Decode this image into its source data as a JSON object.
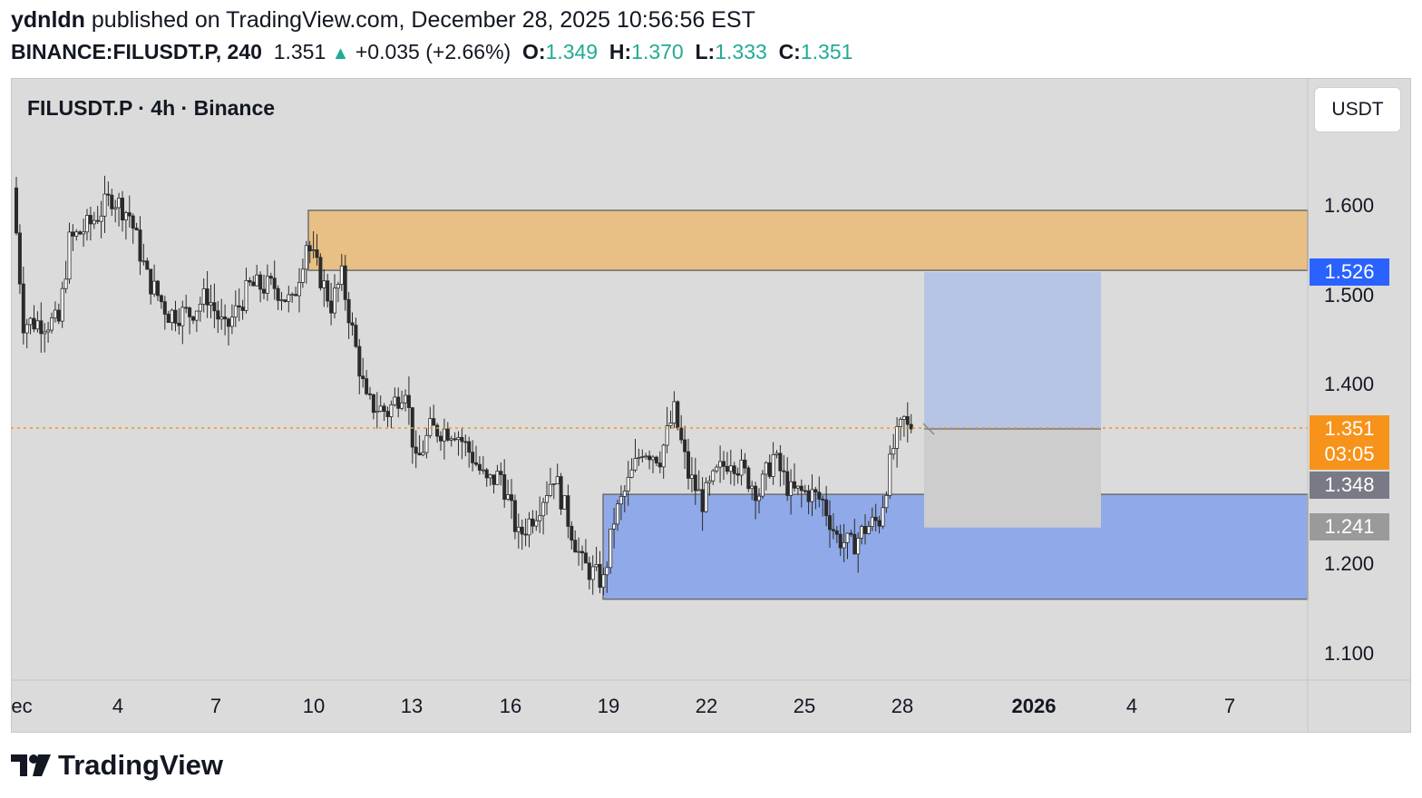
{
  "header": {
    "author": "ydnldn",
    "published_text": "published on TradingView.com, December 28, 2025 10:56:56 EST",
    "symbol_interval": "BINANCE:FILUSDT.P, 240",
    "last": "1.351",
    "change": "+0.035 (+2.66%)",
    "o_label": "O:",
    "o": "1.349",
    "h_label": "H:",
    "h": "1.370",
    "l_label": "L:",
    "l": "1.333",
    "c_label": "C:",
    "c": "1.351"
  },
  "chart_title": "FILUSDT.P · 4h · Binance",
  "currency_button": "USDT",
  "price_labels": {
    "zone_top": "1.526",
    "last_price": "1.351",
    "countdown": "03:05",
    "gray_1": "1.348",
    "gray_2": "1.241"
  },
  "colors": {
    "up": "#22ab94",
    "supply_zone": "#e8bf84",
    "demand_zone": "#90a9e8",
    "projection": "#b6c4e6",
    "blue_tag": "#2962ff",
    "orange_tag": "#f7931a",
    "gray_tag": "#787b86"
  },
  "branding": "TradingView",
  "chart_data": {
    "type": "candlestick",
    "title": "FILUSDT.P · 4h · Binance",
    "y_ticks": [
      "1.600",
      "1.500",
      "1.400",
      "1.200",
      "1.100"
    ],
    "ylim": [
      1.05,
      1.72
    ],
    "x_ticks": [
      "ec",
      "4",
      "7",
      "10",
      "13",
      "16",
      "19",
      "22",
      "25",
      "28",
      "2026",
      "4",
      "7"
    ],
    "grid": false,
    "anchors": [
      {
        "t": 0,
        "y": 1.62
      },
      {
        "t": 3,
        "y": 1.47
      },
      {
        "t": 8,
        "y": 1.47
      },
      {
        "t": 13,
        "y": 1.47
      },
      {
        "t": 16,
        "y": 1.56
      },
      {
        "t": 22,
        "y": 1.58
      },
      {
        "t": 28,
        "y": 1.61
      },
      {
        "t": 33,
        "y": 1.59
      },
      {
        "t": 38,
        "y": 1.52
      },
      {
        "t": 44,
        "y": 1.48
      },
      {
        "t": 50,
        "y": 1.48
      },
      {
        "t": 55,
        "y": 1.5
      },
      {
        "t": 60,
        "y": 1.46
      },
      {
        "t": 67,
        "y": 1.51
      },
      {
        "t": 74,
        "y": 1.51
      },
      {
        "t": 79,
        "y": 1.49
      },
      {
        "t": 83,
        "y": 1.56
      },
      {
        "t": 87,
        "y": 1.52
      },
      {
        "t": 90,
        "y": 1.49
      },
      {
        "t": 93,
        "y": 1.52
      },
      {
        "t": 97,
        "y": 1.44
      },
      {
        "t": 100,
        "y": 1.38
      },
      {
        "t": 106,
        "y": 1.37
      },
      {
        "t": 111,
        "y": 1.4
      },
      {
        "t": 114,
        "y": 1.31
      },
      {
        "t": 118,
        "y": 1.35
      },
      {
        "t": 125,
        "y": 1.35
      },
      {
        "t": 130,
        "y": 1.32
      },
      {
        "t": 134,
        "y": 1.29
      },
      {
        "t": 138,
        "y": 1.3
      },
      {
        "t": 143,
        "y": 1.23
      },
      {
        "t": 148,
        "y": 1.26
      },
      {
        "t": 153,
        "y": 1.3
      },
      {
        "t": 157,
        "y": 1.25
      },
      {
        "t": 161,
        "y": 1.2
      },
      {
        "t": 164,
        "y": 1.19
      },
      {
        "t": 167,
        "y": 1.18
      },
      {
        "t": 170,
        "y": 1.25
      },
      {
        "t": 174,
        "y": 1.29
      },
      {
        "t": 178,
        "y": 1.33
      },
      {
        "t": 183,
        "y": 1.32
      },
      {
        "t": 187,
        "y": 1.37
      },
      {
        "t": 191,
        "y": 1.3
      },
      {
        "t": 195,
        "y": 1.27
      },
      {
        "t": 199,
        "y": 1.3
      },
      {
        "t": 203,
        "y": 1.32
      },
      {
        "t": 207,
        "y": 1.3
      },
      {
        "t": 211,
        "y": 1.28
      },
      {
        "t": 215,
        "y": 1.32
      },
      {
        "t": 220,
        "y": 1.28
      },
      {
        "t": 225,
        "y": 1.28
      },
      {
        "t": 229,
        "y": 1.27
      },
      {
        "t": 233,
        "y": 1.23
      },
      {
        "t": 237,
        "y": 1.22
      },
      {
        "t": 241,
        "y": 1.24
      },
      {
        "t": 245,
        "y": 1.25
      },
      {
        "t": 249,
        "y": 1.33
      },
      {
        "t": 252,
        "y": 1.36
      },
      {
        "t": 253,
        "y": 1.351
      }
    ],
    "zones": [
      {
        "name": "supply",
        "top": 1.595,
        "bottom": 1.528
      },
      {
        "name": "demand",
        "top": 1.278,
        "bottom": 1.161
      },
      {
        "name": "target",
        "top": 1.526,
        "bottom": 1.351
      },
      {
        "name": "stop",
        "top": 1.351,
        "bottom": 1.241
      }
    ],
    "last_price": 1.351
  }
}
